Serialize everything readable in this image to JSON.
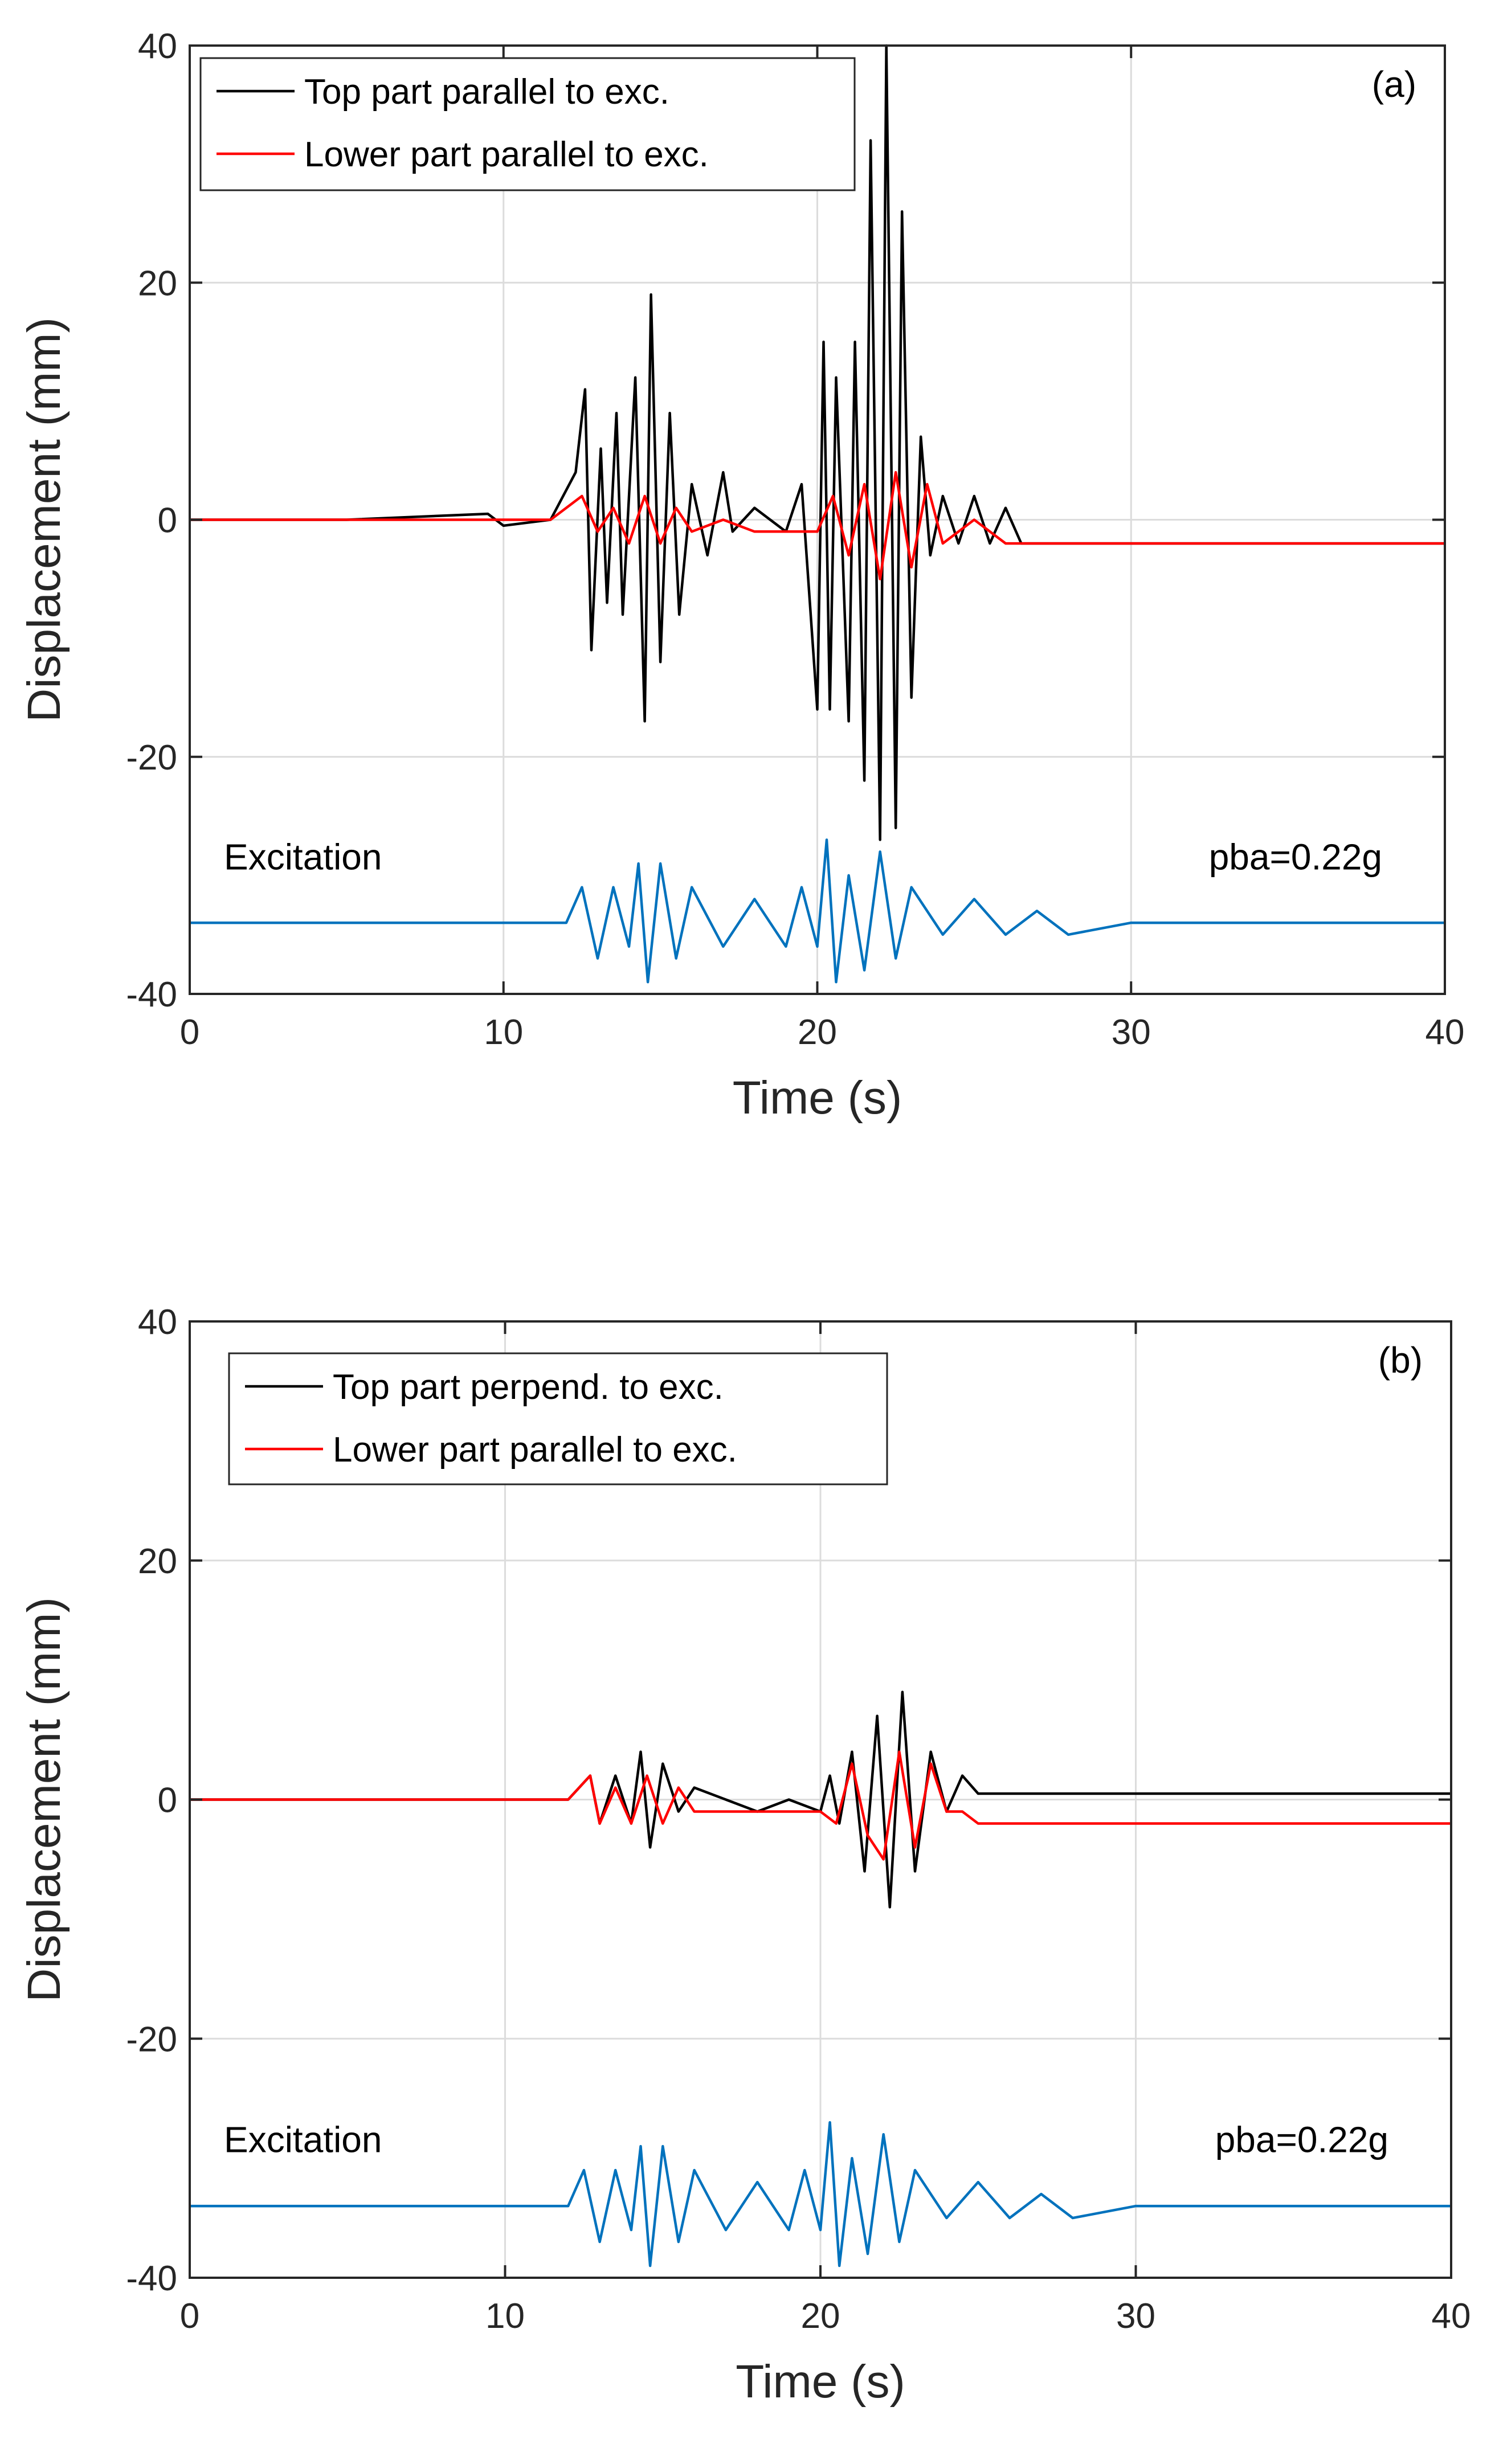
{
  "chart_data": [
    {
      "type": "line",
      "panel_label": "(a)",
      "xlabel": "Time (s)",
      "ylabel": "Displacement (mm)",
      "xlim": [
        0,
        40
      ],
      "ylim": [
        -40,
        40
      ],
      "xticks": [
        0,
        10,
        20,
        30,
        40
      ],
      "yticks": [
        -40,
        -20,
        0,
        20,
        40
      ],
      "grid": true,
      "legend_position": "top-left",
      "annotations": {
        "excitation": "Excitation",
        "pba": "pba=0.22g"
      },
      "series": [
        {
          "name": "Top part parallel to exc.",
          "color": "#000000",
          "x": [
            0,
            5,
            9.5,
            10,
            11.5,
            12.3,
            12.6,
            12.8,
            13.1,
            13.3,
            13.6,
            13.8,
            14.2,
            14.5,
            14.7,
            15,
            15.3,
            15.6,
            16,
            16.5,
            17,
            17.3,
            18,
            19,
            19.5,
            20,
            20.2,
            20.4,
            20.6,
            21,
            21.2,
            21.5,
            21.7,
            22,
            22.2,
            22.5,
            22.7,
            23,
            23.3,
            23.6,
            24,
            24.5,
            25,
            25.5,
            26,
            26.5,
            27,
            30,
            35,
            40
          ],
          "y": [
            0,
            0,
            0.5,
            -0.5,
            0,
            4,
            11,
            -11,
            6,
            -7,
            9,
            -8,
            12,
            -17,
            19,
            -12,
            9,
            -8,
            3,
            -3,
            4,
            -1,
            1,
            -1,
            3,
            -16,
            15,
            -16,
            12,
            -17,
            15,
            -22,
            32,
            -27,
            40,
            -26,
            26,
            -15,
            7,
            -3,
            2,
            -2,
            2,
            -2,
            1,
            -2,
            -2,
            -2,
            -2,
            -2
          ]
        },
        {
          "name": "Lower part parallel to exc.",
          "color": "#ff0000",
          "x": [
            0,
            10,
            11.5,
            12.5,
            13,
            13.5,
            14,
            14.5,
            15,
            15.5,
            16,
            17,
            18,
            19,
            20,
            20.5,
            21,
            21.5,
            22,
            22.5,
            23,
            23.5,
            24,
            25,
            26,
            27,
            30,
            35,
            40
          ],
          "y": [
            0,
            0,
            0,
            2,
            -1,
            1,
            -2,
            2,
            -2,
            1,
            -1,
            0,
            -1,
            -1,
            -1,
            2,
            -3,
            3,
            -5,
            4,
            -4,
            3,
            -2,
            0,
            -2,
            -2,
            -2,
            -2,
            -2
          ]
        },
        {
          "name": "Excitation",
          "color": "#0072bd",
          "x": [
            0,
            5,
            7,
            10,
            11,
            12,
            12.5,
            13,
            13.5,
            14,
            14.3,
            14.6,
            15,
            15.5,
            16,
            17,
            18,
            19,
            19.5,
            20,
            20.3,
            20.6,
            21,
            21.5,
            22,
            22.5,
            23,
            24,
            25,
            26,
            27,
            28,
            30,
            35,
            40
          ],
          "y": [
            -34,
            -34,
            -34,
            -34,
            -34,
            -34,
            -31,
            -37,
            -31,
            -36,
            -29,
            -39,
            -29,
            -37,
            -31,
            -36,
            -32,
            -36,
            -31,
            -36,
            -27,
            -39,
            -30,
            -38,
            -28,
            -37,
            -31,
            -35,
            -32,
            -35,
            -33,
            -35,
            -34,
            -34,
            -34
          ]
        }
      ]
    },
    {
      "type": "line",
      "panel_label": "(b)",
      "xlabel": "Time (s)",
      "ylabel": "Displacement (mm)",
      "xlim": [
        0,
        40
      ],
      "ylim": [
        -40,
        40
      ],
      "xticks": [
        0,
        10,
        20,
        30,
        40
      ],
      "yticks": [
        -40,
        -20,
        0,
        20,
        40
      ],
      "grid": true,
      "legend_position": "top-left",
      "annotations": {
        "excitation": "Excitation",
        "pba": "pba=0.22g"
      },
      "series": [
        {
          "name": "Top part perpend. to exc.",
          "color": "#000000",
          "x": [
            0,
            5,
            10,
            12,
            12.7,
            13,
            13.5,
            14,
            14.3,
            14.6,
            15,
            15.5,
            16,
            17,
            18,
            19,
            20,
            20.3,
            20.6,
            21,
            21.4,
            21.8,
            22.2,
            22.6,
            23,
            23.5,
            24,
            24.5,
            25,
            26,
            30,
            35,
            40
          ],
          "y": [
            0,
            0,
            0,
            0,
            2,
            -2,
            2,
            -2,
            4,
            -4,
            3,
            -1,
            1,
            0,
            -1,
            0,
            -1,
            2,
            -2,
            4,
            -6,
            7,
            -9,
            9,
            -6,
            4,
            -1,
            2,
            0.5,
            0.5,
            0.5,
            0.5,
            0.5
          ]
        },
        {
          "name": "Lower part parallel to exc.",
          "color": "#ff0000",
          "x": [
            0,
            10,
            12,
            12.7,
            13,
            13.5,
            14,
            14.5,
            15,
            15.5,
            16,
            17,
            18,
            19,
            20,
            20.5,
            21,
            21.5,
            22,
            22.5,
            23,
            23.5,
            24,
            24.5,
            25,
            30,
            35,
            40
          ],
          "y": [
            0,
            0,
            0,
            2,
            -2,
            1,
            -2,
            2,
            -2,
            1,
            -1,
            -1,
            -1,
            -1,
            -1,
            -2,
            3,
            -3,
            -5,
            4,
            -4,
            3,
            -1,
            -1,
            -2,
            -2,
            -2,
            -2
          ]
        },
        {
          "name": "Excitation",
          "color": "#0072bd",
          "x": [
            0,
            5,
            7,
            10,
            11,
            12,
            12.5,
            13,
            13.5,
            14,
            14.3,
            14.6,
            15,
            15.5,
            16,
            17,
            18,
            19,
            19.5,
            20,
            20.3,
            20.6,
            21,
            21.5,
            22,
            22.5,
            23,
            24,
            25,
            26,
            27,
            28,
            30,
            35,
            40
          ],
          "y": [
            -34,
            -34,
            -34,
            -34,
            -34,
            -34,
            -31,
            -37,
            -31,
            -36,
            -29,
            -39,
            -29,
            -37,
            -31,
            -36,
            -32,
            -36,
            -31,
            -36,
            -27,
            -39,
            -30,
            -38,
            -28,
            -37,
            -31,
            -35,
            -32,
            -35,
            -33,
            -35,
            -34,
            -34,
            -34
          ]
        }
      ]
    }
  ]
}
